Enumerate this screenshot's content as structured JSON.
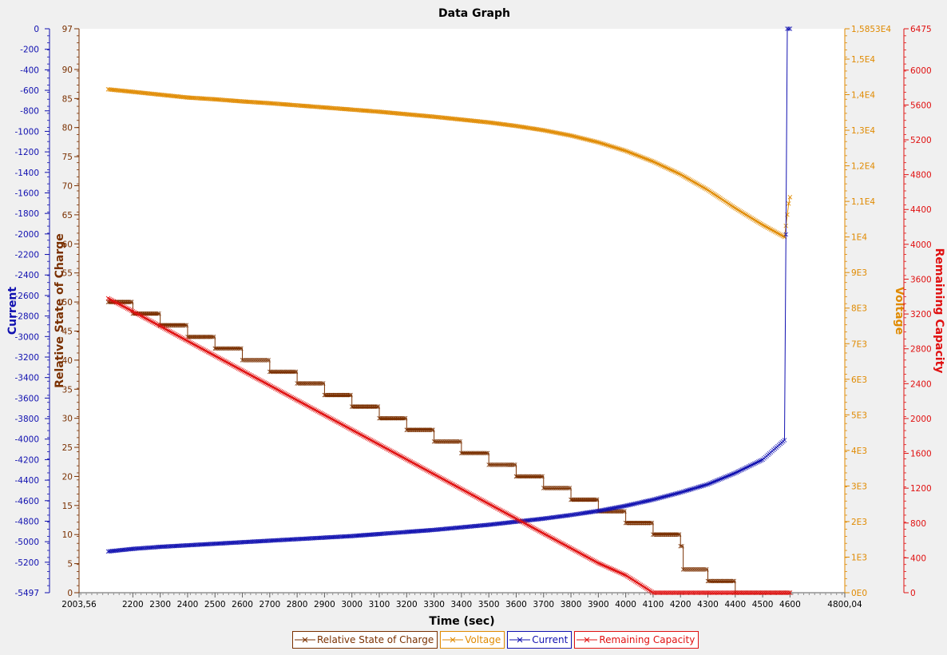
{
  "chart_data": {
    "type": "line",
    "title": "Data Graph",
    "xlabel": "Time (sec)",
    "xlim": [
      2003.56,
      4800.04
    ],
    "x_ticks": [
      "2003,56",
      "2200",
      "2300",
      "2400",
      "2500",
      "2600",
      "2700",
      "2800",
      "2900",
      "3000",
      "3100",
      "3200",
      "3300",
      "3400",
      "3500",
      "3600",
      "3700",
      "3800",
      "3900",
      "4000",
      "4100",
      "4200",
      "4300",
      "4400",
      "4500",
      "4600",
      "4800,04"
    ],
    "axes": {
      "current": {
        "label": "Current",
        "color": "#1010b0",
        "ylim": [
          -5497,
          0
        ],
        "ticks": [
          "0",
          "-200",
          "-400",
          "-600",
          "-800",
          "-1000",
          "-1200",
          "-1400",
          "-1600",
          "-1800",
          "-2000",
          "-2200",
          "-2400",
          "-2600",
          "-2800",
          "-3000",
          "-3200",
          "-3400",
          "-3600",
          "-3800",
          "-4000",
          "-4200",
          "-4400",
          "-4600",
          "-4800",
          "-5000",
          "-5200",
          "-5497"
        ]
      },
      "rsoc": {
        "label": "Relative State of Charge",
        "color": "#7a3000",
        "ylim": [
          0,
          97
        ],
        "ticks": [
          "97",
          "90",
          "85",
          "80",
          "75",
          "70",
          "65",
          "60",
          "55",
          "50",
          "45",
          "40",
          "35",
          "30",
          "25",
          "20",
          "15",
          "10",
          "5",
          "0"
        ]
      },
      "voltage": {
        "label": "Voltage",
        "color": "#e08a00",
        "ylim": [
          0,
          15853
        ],
        "ticks": [
          "1,5853E4",
          "1,5E4",
          "1,4E4",
          "1,3E4",
          "1,2E4",
          "1,1E4",
          "1E4",
          "9E3",
          "8E3",
          "7E3",
          "6E3",
          "5E3",
          "4E3",
          "3E3",
          "2E3",
          "1E3",
          "0E0"
        ]
      },
      "capacity": {
        "label": "Remaining Capacity",
        "color": "#e01010",
        "ylim": [
          0,
          6475
        ],
        "ticks": [
          "6475",
          "6000",
          "5600",
          "5200",
          "4800",
          "4400",
          "4000",
          "3600",
          "3200",
          "2800",
          "2400",
          "2000",
          "1600",
          "1200",
          "800",
          "400",
          "0"
        ]
      }
    },
    "series": [
      {
        "name": "Relative State of Charge",
        "axis": "rsoc",
        "color": "#7a3000",
        "x": [
          2110,
          2200,
          2300,
          2400,
          2500,
          2600,
          2700,
          2800,
          2900,
          3000,
          3100,
          3200,
          3300,
          3400,
          3500,
          3600,
          3700,
          3800,
          3900,
          4000,
          4100,
          4200,
          4210,
          4300,
          4400,
          4420,
          4500,
          4600
        ],
        "y": [
          50,
          48,
          46,
          44,
          42,
          40,
          38,
          36,
          34,
          32,
          30,
          28,
          26,
          24,
          22,
          20,
          18,
          16,
          14,
          12,
          10,
          8,
          4,
          2,
          0,
          0,
          0,
          0
        ]
      },
      {
        "name": "Voltage",
        "axis": "voltage",
        "color": "#e08a00",
        "x": [
          2110,
          2200,
          2300,
          2400,
          2500,
          2600,
          2700,
          2800,
          2900,
          3000,
          3100,
          3200,
          3300,
          3400,
          3500,
          3600,
          3700,
          3800,
          3900,
          4000,
          4100,
          4200,
          4300,
          4400,
          4500,
          4580,
          4595,
          4600
        ],
        "y": [
          14150,
          14080,
          14000,
          13920,
          13870,
          13810,
          13760,
          13700,
          13640,
          13580,
          13520,
          13450,
          13380,
          13300,
          13220,
          13120,
          13000,
          12850,
          12660,
          12420,
          12120,
          11760,
          11320,
          10810,
          10340,
          10000,
          10940,
          11120
        ]
      },
      {
        "name": "Current",
        "axis": "current",
        "color": "#1010b0",
        "x": [
          2110,
          2200,
          2300,
          2400,
          2500,
          2600,
          2700,
          2800,
          2900,
          3000,
          3100,
          3200,
          3300,
          3400,
          3500,
          3600,
          3700,
          3800,
          3900,
          4000,
          4100,
          4200,
          4300,
          4400,
          4500,
          4580,
          4590,
          4600
        ],
        "y": [
          -5095,
          -5070,
          -5050,
          -5035,
          -5020,
          -5005,
          -4990,
          -4975,
          -4960,
          -4945,
          -4925,
          -4905,
          -4885,
          -4860,
          -4835,
          -4805,
          -4775,
          -4740,
          -4700,
          -4650,
          -4590,
          -4520,
          -4440,
          -4330,
          -4200,
          -4010,
          0,
          0
        ]
      },
      {
        "name": "Remaining Capacity",
        "axis": "capacity",
        "color": "#e01010",
        "x": [
          2110,
          2200,
          2300,
          2400,
          2500,
          2600,
          2700,
          2800,
          2900,
          3000,
          3100,
          3200,
          3300,
          3400,
          3500,
          3600,
          3700,
          3800,
          3900,
          4000,
          4100,
          4200,
          4210,
          4300,
          4400,
          4420,
          4500,
          4600
        ],
        "y": [
          3380,
          3230,
          3060,
          2890,
          2720,
          2550,
          2380,
          2210,
          2040,
          1870,
          1700,
          1530,
          1360,
          1190,
          1020,
          850,
          680,
          510,
          340,
          200,
          0,
          0,
          0,
          0,
          0,
          0,
          0,
          0
        ]
      }
    ],
    "legend": {
      "placement": "bottom",
      "entries": [
        "Relative State of Charge",
        "Voltage",
        "Current",
        "Remaining Capacity"
      ]
    },
    "grid": false
  }
}
